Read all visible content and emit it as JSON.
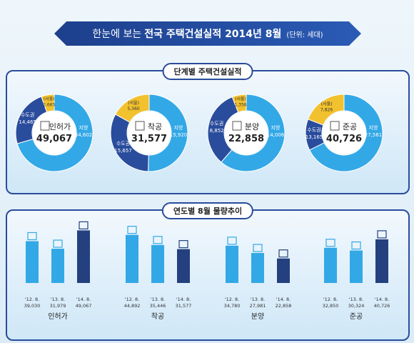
{
  "header": {
    "prefix": "한눈에 보는",
    "title": "전국 주택건설실적 2014년 8월",
    "unit": "(단위: 세대)"
  },
  "donut_section_title": "단계별 주택건설실적",
  "trend_section_title": "연도별 8월 물량추이",
  "colors": {
    "capital": "#2a4c9c",
    "local": "#33a8e6",
    "seoul": "#f2c12e",
    "bar_light": "#33a8e6",
    "bar_dark": "#24407e"
  },
  "chart_data": [
    {
      "type": "pie",
      "title": "인허가",
      "total": "49,067",
      "slices": [
        {
          "name": "지방",
          "value": 34602,
          "label": "34,602"
        },
        {
          "name": "수도권",
          "value": 11800,
          "label": "14,465"
        },
        {
          "name": "(서울)",
          "value": 2665,
          "label": "2,665"
        }
      ]
    },
    {
      "type": "pie",
      "title": "착공",
      "total": "31,577",
      "slices": [
        {
          "name": "지방",
          "value": 15920,
          "label": "15,920"
        },
        {
          "name": "수도권",
          "value": 10297,
          "label": "15,657"
        },
        {
          "name": "(서울)",
          "value": 5360,
          "label": "5,360"
        }
      ]
    },
    {
      "type": "pie",
      "title": "분양",
      "total": "22,858",
      "slices": [
        {
          "name": "지방",
          "value": 14006,
          "label": "14,006"
        },
        {
          "name": "수도권",
          "value": 7496,
          "label": "8,852"
        },
        {
          "name": "(서울)",
          "value": 1356,
          "label": "1,356"
        }
      ]
    },
    {
      "type": "pie",
      "title": "준공",
      "total": "40,726",
      "slices": [
        {
          "name": "지방",
          "value": 27561,
          "label": "27,561"
        },
        {
          "name": "수도권",
          "value": 5339,
          "label": "13,165"
        },
        {
          "name": "(서울)",
          "value": 7826,
          "label": "7,826"
        }
      ]
    },
    {
      "type": "bar",
      "groups": [
        {
          "name": "인허가",
          "categories": [
            "'12. 8.",
            "'13. 8.",
            "'14. 8."
          ],
          "values": [
            39030,
            31979,
            49067
          ],
          "labels": [
            "39,030",
            "31,979",
            "49,067"
          ]
        },
        {
          "name": "착공",
          "categories": [
            "'12. 8.",
            "'13. 8.",
            "'14. 8."
          ],
          "values": [
            44892,
            35446,
            31577
          ],
          "labels": [
            "44,892",
            "35,446",
            "31,577"
          ]
        },
        {
          "name": "분양",
          "categories": [
            "'12. 8.",
            "'13. 8.",
            "'14. 8."
          ],
          "values": [
            34780,
            27981,
            22858
          ],
          "labels": [
            "34,780",
            "27,981",
            "22,858"
          ]
        },
        {
          "name": "준공",
          "categories": [
            "'12. 8.",
            "'13. 8.",
            "'14. 8."
          ],
          "values": [
            32850,
            30324,
            40726
          ],
          "labels": [
            "32,850",
            "30,324",
            "40,726"
          ]
        }
      ]
    }
  ]
}
